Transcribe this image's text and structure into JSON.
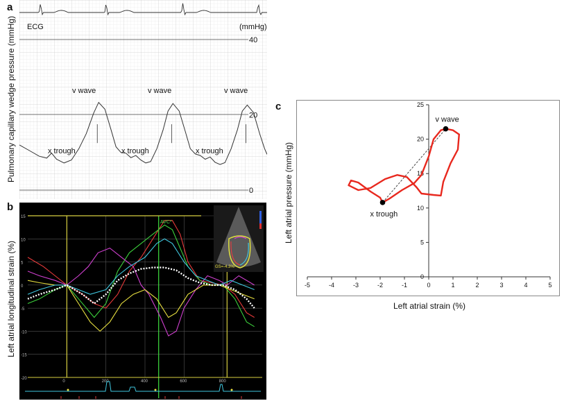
{
  "panels": {
    "a": {
      "letter": "a"
    },
    "b": {
      "letter": "b"
    },
    "c": {
      "letter": "c"
    }
  },
  "chart_data": [
    {
      "type": "line",
      "panel": "a",
      "ylabel": "Pulmonary capillary wedge pressure (mmHg)",
      "ecg_label": "ECG",
      "unit_label": "(mmHg)",
      "y_ticks": [
        "40",
        "20",
        "0"
      ],
      "ylim": [
        0,
        40
      ],
      "annotations": [
        {
          "text": "v wave",
          "beat": 1
        },
        {
          "text": "v wave",
          "beat": 2
        },
        {
          "text": "v wave",
          "beat": 3
        },
        {
          "text": "x trough",
          "beat": 1
        },
        {
          "text": "x trough",
          "beat": 2
        },
        {
          "text": "x trough",
          "beat": 3
        }
      ],
      "pressure_trace": [
        [
          0,
          12
        ],
        [
          0.04,
          10.5
        ],
        [
          0.08,
          9
        ],
        [
          0.11,
          8.5
        ],
        [
          0.13,
          9.8
        ],
        [
          0.15,
          8.2
        ],
        [
          0.18,
          7.2
        ],
        [
          0.21,
          8
        ],
        [
          0.24,
          11
        ],
        [
          0.27,
          15
        ],
        [
          0.3,
          20.5
        ],
        [
          0.32,
          23.3
        ],
        [
          0.345,
          21.5
        ],
        [
          0.37,
          16
        ],
        [
          0.39,
          11.5
        ],
        [
          0.41,
          10
        ],
        [
          0.43,
          9.8
        ],
        [
          0.45,
          8.6
        ],
        [
          0.47,
          9.2
        ],
        [
          0.49,
          8
        ],
        [
          0.51,
          7.2
        ],
        [
          0.53,
          7.6
        ],
        [
          0.555,
          11
        ],
        [
          0.58,
          16
        ],
        [
          0.6,
          21
        ],
        [
          0.62,
          23
        ],
        [
          0.645,
          21
        ],
        [
          0.67,
          15.5
        ],
        [
          0.69,
          11
        ],
        [
          0.71,
          9.6
        ],
        [
          0.73,
          9.2
        ],
        [
          0.75,
          8.2
        ],
        [
          0.77,
          8.8
        ],
        [
          0.79,
          7.4
        ],
        [
          0.81,
          6.8
        ],
        [
          0.83,
          7.3
        ],
        [
          0.855,
          11
        ],
        [
          0.88,
          16
        ],
        [
          0.9,
          21
        ],
        [
          0.92,
          22.6
        ],
        [
          0.945,
          20.6
        ],
        [
          0.97,
          15
        ],
        [
          0.99,
          11
        ],
        [
          1.0,
          9.5
        ]
      ]
    },
    {
      "type": "line",
      "panel": "b",
      "ylabel": "Left atrial longitudinal strain (%)",
      "y_ticks": [
        "15",
        "10",
        "5",
        "0",
        "-5",
        "-10",
        "-15",
        "-20"
      ],
      "x_ticks": [
        "0",
        "200",
        "400",
        "600",
        "800"
      ],
      "ylim": [
        -20,
        15
      ],
      "xlim": [
        -200,
        1000
      ],
      "marker_label": "AVC*",
      "inset_text": "GS=-4.3%",
      "series": [
        {
          "color": "#e83a3a",
          "values": [
            [
              -200,
              6
            ],
            [
              -120,
              4
            ],
            [
              -60,
              2
            ],
            [
              0,
              0
            ],
            [
              80,
              -2
            ],
            [
              140,
              -4
            ],
            [
              200,
              -5
            ],
            [
              260,
              -2
            ],
            [
              320,
              3
            ],
            [
              380,
              6
            ],
            [
              440,
              10
            ],
            [
              500,
              14
            ],
            [
              540,
              14
            ],
            [
              580,
              11
            ],
            [
              620,
              5
            ],
            [
              680,
              1
            ],
            [
              740,
              0.5
            ],
            [
              800,
              0
            ],
            [
              860,
              -2
            ],
            [
              920,
              -6
            ],
            [
              960,
              -7
            ]
          ]
        },
        {
          "color": "#3ccf3c",
          "values": [
            [
              -200,
              -4
            ],
            [
              -140,
              -3
            ],
            [
              -60,
              -1
            ],
            [
              0,
              0
            ],
            [
              60,
              -3
            ],
            [
              140,
              -7
            ],
            [
              200,
              -4
            ],
            [
              260,
              3
            ],
            [
              320,
              7
            ],
            [
              380,
              9
            ],
            [
              440,
              11
            ],
            [
              500,
              13
            ],
            [
              540,
              12
            ],
            [
              580,
              8
            ],
            [
              620,
              4
            ],
            [
              680,
              1
            ],
            [
              740,
              0
            ],
            [
              800,
              0
            ],
            [
              860,
              -3
            ],
            [
              920,
              -8
            ],
            [
              960,
              -9
            ]
          ]
        },
        {
          "color": "#d040d0",
          "values": [
            [
              -200,
              3
            ],
            [
              -140,
              2
            ],
            [
              -60,
              1
            ],
            [
              0,
              0
            ],
            [
              60,
              2
            ],
            [
              110,
              4
            ],
            [
              160,
              7
            ],
            [
              220,
              8
            ],
            [
              280,
              6
            ],
            [
              340,
              4
            ],
            [
              380,
              0
            ],
            [
              420,
              -2
            ],
            [
              480,
              -7
            ],
            [
              520,
              -11
            ],
            [
              560,
              -10
            ],
            [
              600,
              -5
            ],
            [
              660,
              -1
            ],
            [
              720,
              2
            ],
            [
              780,
              1
            ],
            [
              820,
              0
            ],
            [
              880,
              2
            ],
            [
              960,
              0
            ]
          ]
        },
        {
          "color": "#e8e040",
          "values": [
            [
              -200,
              1
            ],
            [
              -140,
              0.5
            ],
            [
              -60,
              0
            ],
            [
              0,
              0
            ],
            [
              60,
              -4
            ],
            [
              120,
              -8
            ],
            [
              170,
              -10
            ],
            [
              220,
              -8
            ],
            [
              280,
              -4
            ],
            [
              340,
              -2
            ],
            [
              400,
              -1
            ],
            [
              460,
              -3
            ],
            [
              520,
              -7
            ],
            [
              560,
              -6
            ],
            [
              620,
              -2
            ],
            [
              700,
              0
            ],
            [
              780,
              0
            ],
            [
              840,
              -1
            ],
            [
              900,
              -2
            ],
            [
              960,
              -3
            ]
          ]
        },
        {
          "color": "#40c8e0",
          "values": [
            [
              -200,
              -2
            ],
            [
              -140,
              -1
            ],
            [
              -60,
              0
            ],
            [
              0,
              0
            ],
            [
              60,
              -1
            ],
            [
              120,
              -2
            ],
            [
              200,
              -1
            ],
            [
              260,
              2
            ],
            [
              320,
              4
            ],
            [
              400,
              6
            ],
            [
              460,
              9
            ],
            [
              500,
              10
            ],
            [
              540,
              9
            ],
            [
              600,
              5
            ],
            [
              660,
              2
            ],
            [
              720,
              1
            ],
            [
              780,
              0
            ],
            [
              840,
              1
            ],
            [
              900,
              0
            ],
            [
              960,
              -1
            ]
          ]
        },
        {
          "color": "#ffffff",
          "dashed": true,
          "values": [
            [
              -200,
              -3
            ],
            [
              -140,
              -2
            ],
            [
              -60,
              -1
            ],
            [
              0,
              0
            ],
            [
              80,
              -2
            ],
            [
              140,
              -4
            ],
            [
              200,
              -2
            ],
            [
              260,
              1
            ],
            [
              320,
              2.5
            ],
            [
              380,
              3.5
            ],
            [
              440,
              3.8
            ],
            [
              500,
              3.8
            ],
            [
              560,
              3.2
            ],
            [
              620,
              1.5
            ],
            [
              680,
              0.5
            ],
            [
              740,
              0
            ],
            [
              800,
              0
            ],
            [
              860,
              -1
            ],
            [
              920,
              -3
            ],
            [
              960,
              -5
            ]
          ]
        }
      ]
    },
    {
      "type": "line",
      "panel": "c",
      "xlabel": "Left atrial strain (%)",
      "ylabel": "Left atrial pressure (mmHg)",
      "x_ticks": [
        "-5",
        "-4",
        "-3",
        "-2",
        "-1",
        "0",
        "1",
        "2",
        "3",
        "4",
        "5"
      ],
      "y_ticks": [
        "0",
        "5",
        "10",
        "15",
        "20",
        "25"
      ],
      "xlim": [
        -5,
        5
      ],
      "ylim": [
        0,
        25
      ],
      "annotations": [
        {
          "text": "v wave",
          "x": 0.7,
          "y": 21.5
        },
        {
          "text": "x trough",
          "x": -1.9,
          "y": 10.8
        }
      ],
      "loop": [
        [
          -1.9,
          10.8
        ],
        [
          -1.6,
          11.4
        ],
        [
          -1.1,
          12.6
        ],
        [
          -0.6,
          13.6
        ],
        [
          -0.3,
          14.8
        ],
        [
          0,
          17.5
        ],
        [
          0.2,
          20
        ],
        [
          0.5,
          21.3
        ],
        [
          0.7,
          21.5
        ],
        [
          1.0,
          21.3
        ],
        [
          1.25,
          20.7
        ],
        [
          1.2,
          18.5
        ],
        [
          0.9,
          16.5
        ],
        [
          0.6,
          13.8
        ],
        [
          0.5,
          11.8
        ],
        [
          0.2,
          11.9
        ],
        [
          -0.3,
          12.1
        ],
        [
          -0.5,
          13.0
        ],
        [
          -0.9,
          14.5
        ],
        [
          -1.3,
          14.8
        ],
        [
          -1.8,
          14.2
        ],
        [
          -2.4,
          12.9
        ],
        [
          -2.9,
          12.6
        ],
        [
          -3.3,
          13.3
        ],
        [
          -3.2,
          14.0
        ],
        [
          -2.9,
          13.7
        ],
        [
          -2.4,
          12.4
        ],
        [
          -2.0,
          11.5
        ],
        [
          -1.9,
          10.8
        ]
      ],
      "dashed_line": [
        [
          -1.9,
          10.8
        ],
        [
          0.7,
          21.5
        ]
      ]
    }
  ]
}
